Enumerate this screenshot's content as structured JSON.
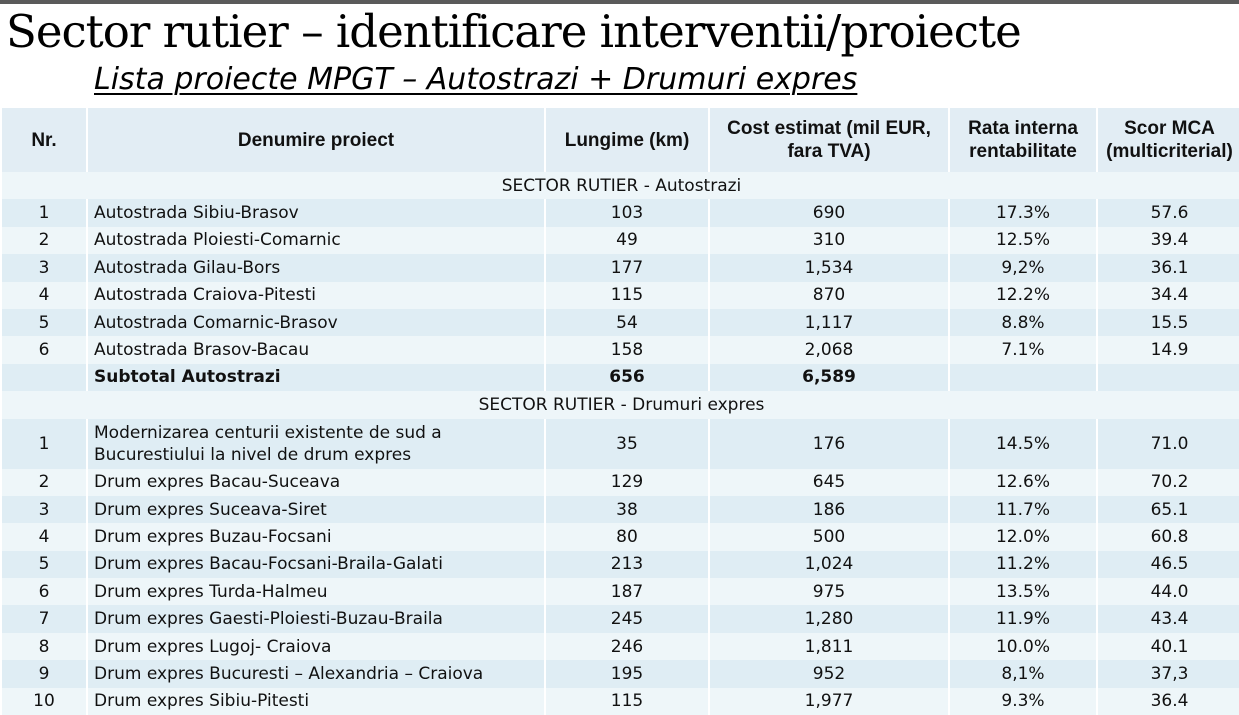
{
  "title": "Sector rutier – identificare interventii/proiecte",
  "subtitle": "Lista proiecte MPGT – Autostrazi + Drumuri expres",
  "table": {
    "headers": {
      "nr": "Nr.",
      "name": "Denumire proiect",
      "length": "Lungime (km)",
      "cost_line1": "Cost estimat (mil EUR,",
      "cost_line2": "fara TVA)",
      "irr_line1": "Rata interna",
      "irr_line2": "rentabilitate",
      "mca_line1": "Scor MCA",
      "mca_line2": "(multicriterial)"
    },
    "sections": [
      {
        "label": "SECTOR RUTIER - Autostrazi",
        "rows": [
          {
            "nr": "1",
            "name": "Autostrada Sibiu-Brasov",
            "length": "103",
            "cost": "690",
            "irr": "17.3%",
            "mca": "57.6"
          },
          {
            "nr": "2",
            "name": "Autostrada Ploiesti-Comarnic",
            "length": "49",
            "cost": "310",
            "irr": "12.5%",
            "mca": "39.4"
          },
          {
            "nr": "3",
            "name": "Autostrada Gilau-Bors",
            "length": "177",
            "cost": "1,534",
            "irr": "9,2%",
            "mca": "36.1"
          },
          {
            "nr": "4",
            "name": "Autostrada Craiova-Pitesti",
            "length": "115",
            "cost": "870",
            "irr": "12.2%",
            "mca": "34.4"
          },
          {
            "nr": "5",
            "name": "Autostrada Comarnic-Brasov",
            "length": "54",
            "cost": "1,117",
            "irr": "8.8%",
            "mca": "15.5"
          },
          {
            "nr": "6",
            "name": "Autostrada Brasov-Bacau",
            "length": "158",
            "cost": "2,068",
            "irr": "7.1%",
            "mca": "14.9"
          }
        ],
        "subtotal": {
          "name": "Subtotal Autostrazi",
          "length": "656",
          "cost": "6,589"
        }
      },
      {
        "label": "SECTOR RUTIER - Drumuri expres",
        "rows": [
          {
            "nr": "1",
            "name": "Modernizarea centurii existente de sud a Bucurestiului la nivel de drum expres",
            "length": "35",
            "cost": "176",
            "irr": "14.5%",
            "mca": "71.0"
          },
          {
            "nr": "2",
            "name": "Drum expres Bacau-Suceava",
            "length": "129",
            "cost": "645",
            "irr": "12.6%",
            "mca": "70.2"
          },
          {
            "nr": "3",
            "name": "Drum expres Suceava-Siret",
            "length": "38",
            "cost": "186",
            "irr": "11.7%",
            "mca": "65.1"
          },
          {
            "nr": "4",
            "name": "Drum expres Buzau-Focsani",
            "length": "80",
            "cost": "500",
            "irr": "12.0%",
            "mca": "60.8"
          },
          {
            "nr": "5",
            "name": "Drum expres Bacau-Focsani-Braila-Galati",
            "length": "213",
            "cost": "1,024",
            "irr": "11.2%",
            "mca": "46.5"
          },
          {
            "nr": "6",
            "name": "Drum expres Turda-Halmeu",
            "length": "187",
            "cost": "975",
            "irr": "13.5%",
            "mca": "44.0"
          },
          {
            "nr": "7",
            "name": "Drum expres Gaesti-Ploiesti-Buzau-Braila",
            "length": "245",
            "cost": "1,280",
            "irr": "11.9%",
            "mca": "43.4"
          },
          {
            "nr": "8",
            "name": "Drum expres Lugoj- Craiova",
            "length": "246",
            "cost": "1,811",
            "irr": "10.0%",
            "mca": "40.1"
          },
          {
            "nr": "9",
            "name": "Drum expres Bucuresti – Alexandria – Craiova",
            "length": "195",
            "cost": "952",
            "irr": "8,1%",
            "mca": "37,3"
          },
          {
            "nr": "10",
            "name": "Drum expres Sibiu-Pitesti",
            "length": "115",
            "cost": "1,977",
            "irr": "9.3%",
            "mca": "36.4"
          }
        ]
      }
    ]
  }
}
